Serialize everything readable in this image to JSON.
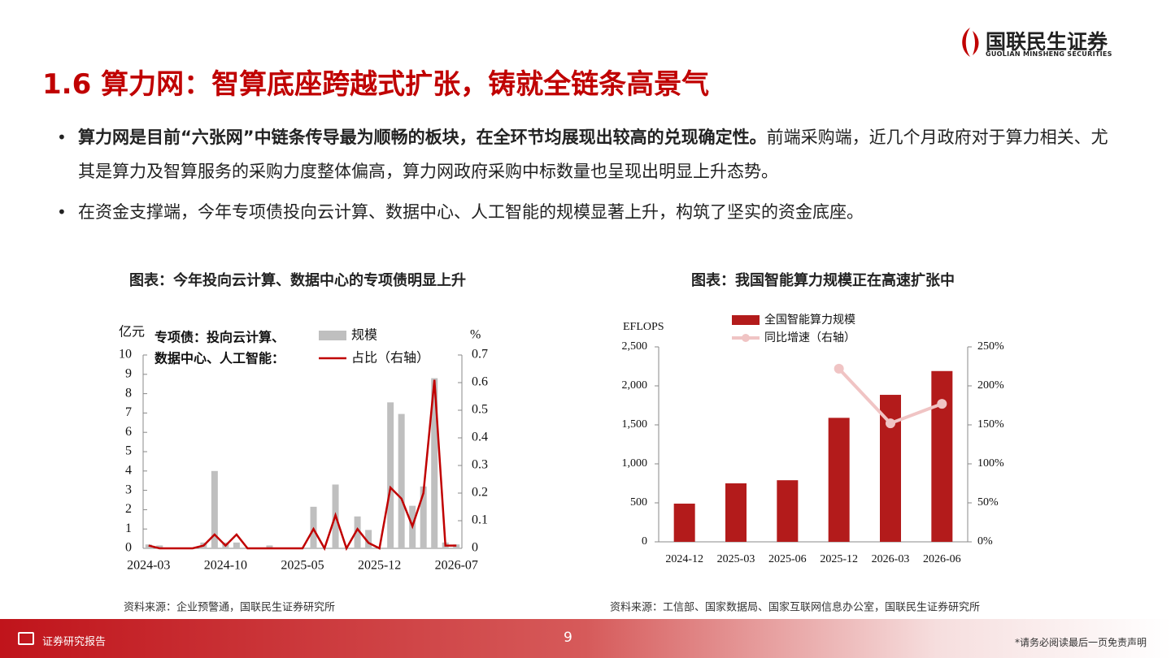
{
  "logo": {
    "name": "国联民生证券",
    "sub": "GUOLIAN MINSHENG SECURITIES"
  },
  "header": {
    "title": "1.6 算力网：智算底座跨越式扩张，铸就全链条高景气"
  },
  "bullets": [
    {
      "bold": "算力网是目前“六张网”中链条传导最为顺畅的板块，在全环节均展现出较高的兑现确定性。",
      "text": "前端采购端，近几个月政府对于算力相关、尤其是算力及智算服务的采购力度整体偏高，算力网政府采购中标数量也呈现出明显上升态势。"
    },
    {
      "text": "在资金支撑端，今年专项债投向云计算、数据中心、人工智能的规模显著上升，构筑了坚实的资金底座。"
    }
  ],
  "chart_data": [
    {
      "type": "bar",
      "title": "图表：今年投向云计算、数据中心的专项债明显上升",
      "y_label": "亿元",
      "y2_label": "%",
      "annotation": [
        "专项债：投向云计算、",
        "数据中心、人工智能："
      ],
      "categories": [
        "2024-03",
        null,
        null,
        null,
        null,
        null,
        null,
        "2024-10",
        null,
        null,
        null,
        null,
        null,
        null,
        "2025-05",
        null,
        null,
        null,
        null,
        null,
        null,
        "2025-12",
        null,
        null,
        null,
        null,
        null,
        null,
        "2026-07"
      ],
      "series": [
        {
          "name": "规模",
          "color": "#bfbfbf",
          "type": "bar",
          "values": [
            0.2,
            0.15,
            0,
            0,
            0,
            0.3,
            4.0,
            0.3,
            0.3,
            0,
            0,
            0.15,
            0,
            0,
            0,
            2.15,
            0,
            3.3,
            0,
            1.65,
            0.95,
            0,
            7.55,
            6.95,
            2.2,
            3.2,
            8.8,
            0.3,
            0.2
          ]
        },
        {
          "name": "占比（右轴）",
          "color": "#c00000",
          "type": "line",
          "axis": "y2",
          "values": [
            0.01,
            0,
            0,
            0,
            0,
            0.01,
            0.05,
            0.01,
            0.05,
            0,
            0,
            0,
            0,
            0,
            0,
            0.07,
            0,
            0.12,
            0,
            0.07,
            0.02,
            0,
            0.22,
            0.18,
            0.08,
            0.2,
            0.61,
            0.01,
            0.01
          ]
        }
      ],
      "ylim": [
        0,
        10
      ],
      "yticks": [
        0,
        1,
        2,
        3,
        4,
        5,
        6,
        7,
        8,
        9,
        10
      ],
      "y2lim": [
        0,
        0.7
      ],
      "y2ticks": [
        0,
        0.1,
        0.2,
        0.3,
        0.4,
        0.5,
        0.6,
        0.7
      ],
      "source": "资料来源：企业预警通，国联民生证券研究所"
    },
    {
      "type": "bar",
      "title": "图表：我国智能算力规模正在高速扩张中",
      "y_label": "EFLOPS",
      "categories": [
        "2024-12",
        "2025-03",
        "2025-06",
        "2025-12",
        "2026-03",
        "2026-06"
      ],
      "series": [
        {
          "name": "全国智能算力规模",
          "color": "#b31b1b",
          "type": "bar",
          "values": [
            490,
            750,
            790,
            1590,
            1885,
            2190
          ]
        },
        {
          "name": "同比增速（右轴）",
          "color": "#f0c4c4",
          "type": "line",
          "axis": "y2",
          "marker": true,
          "values": [
            null,
            null,
            null,
            222,
            152,
            177
          ]
        }
      ],
      "ylim": [
        0,
        2500
      ],
      "yticks": [
        0,
        500,
        {
          "value": 1000,
          "label": "1,000"
        },
        {
          "value": 1500,
          "label": "1,500"
        },
        {
          "value": 2000,
          "label": "2,000"
        },
        {
          "value": 2500,
          "label": "2,500"
        }
      ],
      "y2lim": [
        0,
        250
      ],
      "y2ticks": [
        {
          "value": 0,
          "label": "0%"
        },
        {
          "value": 50,
          "label": "50%"
        },
        {
          "value": 100,
          "label": "100%"
        },
        {
          "value": 150,
          "label": "150%"
        },
        {
          "value": 200,
          "label": "200%"
        },
        {
          "value": 250,
          "label": "250%"
        }
      ],
      "source": "资料来源：工信部、国家数据局、国家互联网信息办公室，国联民生证券研究所"
    }
  ],
  "footer": {
    "label": "证券研究报告",
    "page": "9",
    "disclaimer": "*请务必阅读最后一页免责声明"
  }
}
